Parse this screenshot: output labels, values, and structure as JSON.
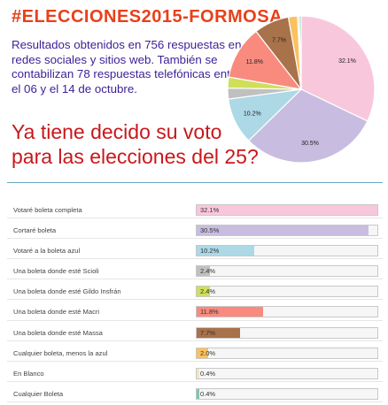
{
  "hashtag": "#ELECCIONES2015-FORMOSA",
  "intro": "Resultados obtenidos en 756 respuestas en redes sociales y sitios web. También se contabilizan 78 respuestas telefónicas entre el 06 y el 14 de octubre.",
  "question": "Ya tiene decido su voto para las elecciones del 25?",
  "chart_data": {
    "type": "bar",
    "categories": [
      "Votaré boleta completa",
      "Cortaré boleta",
      "Votaré a la boleta azul",
      "Una boleta donde esté Scioli",
      "Una boleta donde esté Gildo Insfrán",
      "Una boleta donde esté Macri",
      "Una boleta donde esté Massa",
      "Cualquier boleta, menos la azul",
      "En Blanco",
      "Cualquier Boleta"
    ],
    "values": [
      32.1,
      30.5,
      10.2,
      2.4,
      2.4,
      11.8,
      7.7,
      2.0,
      0.4,
      0.4
    ],
    "value_labels": [
      "32.1%",
      "30.5%",
      "10.2%",
      "2.4%",
      "2.4%",
      "11.8%",
      "7.7%",
      "2.0%",
      "0.4%",
      "0.4%"
    ],
    "colors": [
      "#f9c7dc",
      "#c8bde0",
      "#add8e6",
      "#c0c0c0",
      "#cfdf5a",
      "#f88b7e",
      "#a8724a",
      "#fbc060",
      "#f2e4c2",
      "#7fc8a8"
    ],
    "xlim": [
      0,
      32.1
    ],
    "pie_order": [
      0,
      1,
      2,
      3,
      4,
      5,
      6,
      7,
      8,
      9
    ],
    "pie_labeled_slices": [
      0,
      1,
      2,
      5,
      6
    ]
  }
}
